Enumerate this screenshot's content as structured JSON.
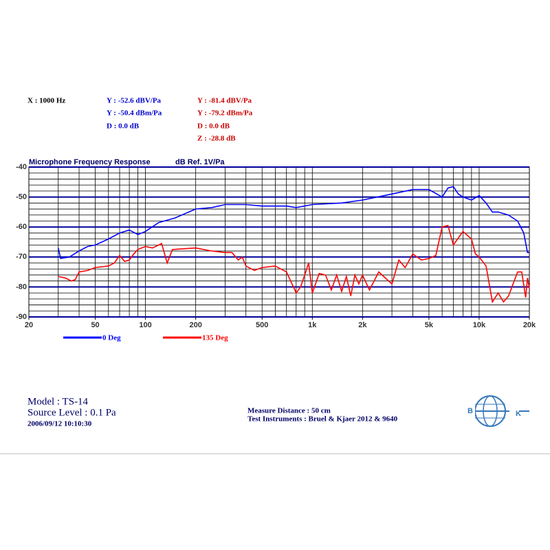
{
  "header": {
    "x_readout": "X : 1000 Hz",
    "blue": [
      "Y : -52.6 dBV/Pa",
      "Y : -50.4 dBm/Pa",
      "D : 0.0 dB"
    ],
    "red": [
      "Y : -81.4 dBV/Pa",
      "Y : -79.2 dBm/Pa",
      "D : 0.0 dB",
      "Z : -28.8 dB"
    ]
  },
  "chart_data": {
    "type": "line",
    "title": "Microphone Frequency Response",
    "subtitle": "dB Ref. 1V/Pa",
    "log_x": true,
    "grid": true,
    "xlim": [
      20,
      20000
    ],
    "xticks": [
      20,
      50,
      100,
      200,
      500,
      {
        "value": 1000,
        "label": "1k"
      },
      {
        "value": 2000,
        "label": "2k"
      },
      {
        "value": 5000,
        "label": "5k"
      },
      {
        "value": 10000,
        "label": "10k"
      },
      {
        "value": 20000,
        "label": "20k"
      }
    ],
    "xgrid": [
      30,
      40,
      50,
      60,
      70,
      80,
      90,
      100,
      200,
      300,
      400,
      500,
      600,
      700,
      800,
      900,
      1000,
      2000,
      3000,
      4000,
      5000,
      6000,
      7000,
      8000,
      9000,
      10000
    ],
    "ylim": [
      -90,
      -40
    ],
    "yticks": [
      -40,
      -50,
      -60,
      -70,
      -80,
      -90
    ],
    "yminor": [
      -42,
      -44,
      -46,
      -48,
      -52,
      -54,
      -56,
      -58,
      -62,
      -64,
      -66,
      -68,
      -72,
      -74,
      -76,
      -78,
      -82,
      -84,
      -86,
      -88
    ],
    "series": [
      {
        "name": "0 Deg",
        "color": "#0000ff",
        "x": [
          30,
          31,
          35,
          40,
          45,
          50,
          60,
          70,
          80,
          90,
          100,
          120,
          150,
          200,
          250,
          300,
          400,
          500,
          700,
          800,
          1000,
          1500,
          2000,
          3000,
          4000,
          5000,
          6000,
          6500,
          7000,
          7500,
          8000,
          9000,
          10000,
          11000,
          12000,
          13000,
          15000,
          17000,
          18500,
          19500,
          20000
        ],
        "values": [
          -67,
          -70.5,
          -70,
          -68,
          -66.5,
          -66,
          -64,
          -62,
          -61,
          -62.5,
          -61.5,
          -58.5,
          -57,
          -54,
          -53.5,
          -52.5,
          -52.5,
          -53,
          -53,
          -53.5,
          -52.5,
          -52,
          -51,
          -49,
          -47.5,
          -47.5,
          -50,
          -47,
          -46.5,
          -49,
          -50,
          -51,
          -49.5,
          -52,
          -55,
          -55,
          -56,
          -58,
          -62,
          -68.5,
          -68.5
        ]
      },
      {
        "name": "135 Deg",
        "color": "#ff0000",
        "x": [
          30,
          33,
          36,
          38,
          40,
          45,
          50,
          60,
          65,
          70,
          75,
          80,
          85,
          90,
          100,
          110,
          120,
          125,
          135,
          145,
          200,
          250,
          300,
          330,
          360,
          380,
          400,
          450,
          500,
          600,
          700,
          800,
          850,
          900,
          950,
          1000,
          1100,
          1200,
          1300,
          1400,
          1500,
          1600,
          1700,
          1800,
          1900,
          2000,
          2200,
          2500,
          3000,
          3300,
          3600,
          4000,
          4500,
          5000,
          5500,
          6000,
          6500,
          7000,
          8000,
          9000,
          9500,
          10000,
          11000,
          12000,
          13000,
          14000,
          15000,
          17000,
          18000,
          19000,
          19500,
          20000
        ],
        "values": [
          -76.5,
          -77,
          -78,
          -77.5,
          -75,
          -74.5,
          -73.5,
          -73,
          -72,
          -69.5,
          -71.5,
          -71,
          -69,
          -67.5,
          -66.5,
          -67,
          -66,
          -65.5,
          -72,
          -67.5,
          -67,
          -68,
          -68.5,
          -68.5,
          -71,
          -70,
          -73,
          -74.5,
          -73.5,
          -73,
          -75,
          -82,
          -80,
          -76,
          -72,
          -82,
          -75.5,
          -76,
          -81,
          -76,
          -81.5,
          -76.5,
          -83,
          -76,
          -79,
          -76,
          -81,
          -75,
          -79,
          -71,
          -73.5,
          -69,
          -71,
          -70.5,
          -69.5,
          -60,
          -59.5,
          -66,
          -61.5,
          -64,
          -69,
          -70,
          -73,
          -85,
          -82,
          -85,
          -83,
          -75,
          -75,
          -83.5,
          -77,
          -80.5
        ]
      }
    ]
  },
  "footer": {
    "model": "Model : TS-14",
    "source": "Source Level : 0.1 Pa",
    "date": "2006/09/12 10:10:30",
    "distance": "Measure Distance : 50 cm",
    "instruments": "Test Instruments : Bruel & Kjaer 2012 & 9640",
    "logo_left": "B",
    "logo_right": "K"
  }
}
